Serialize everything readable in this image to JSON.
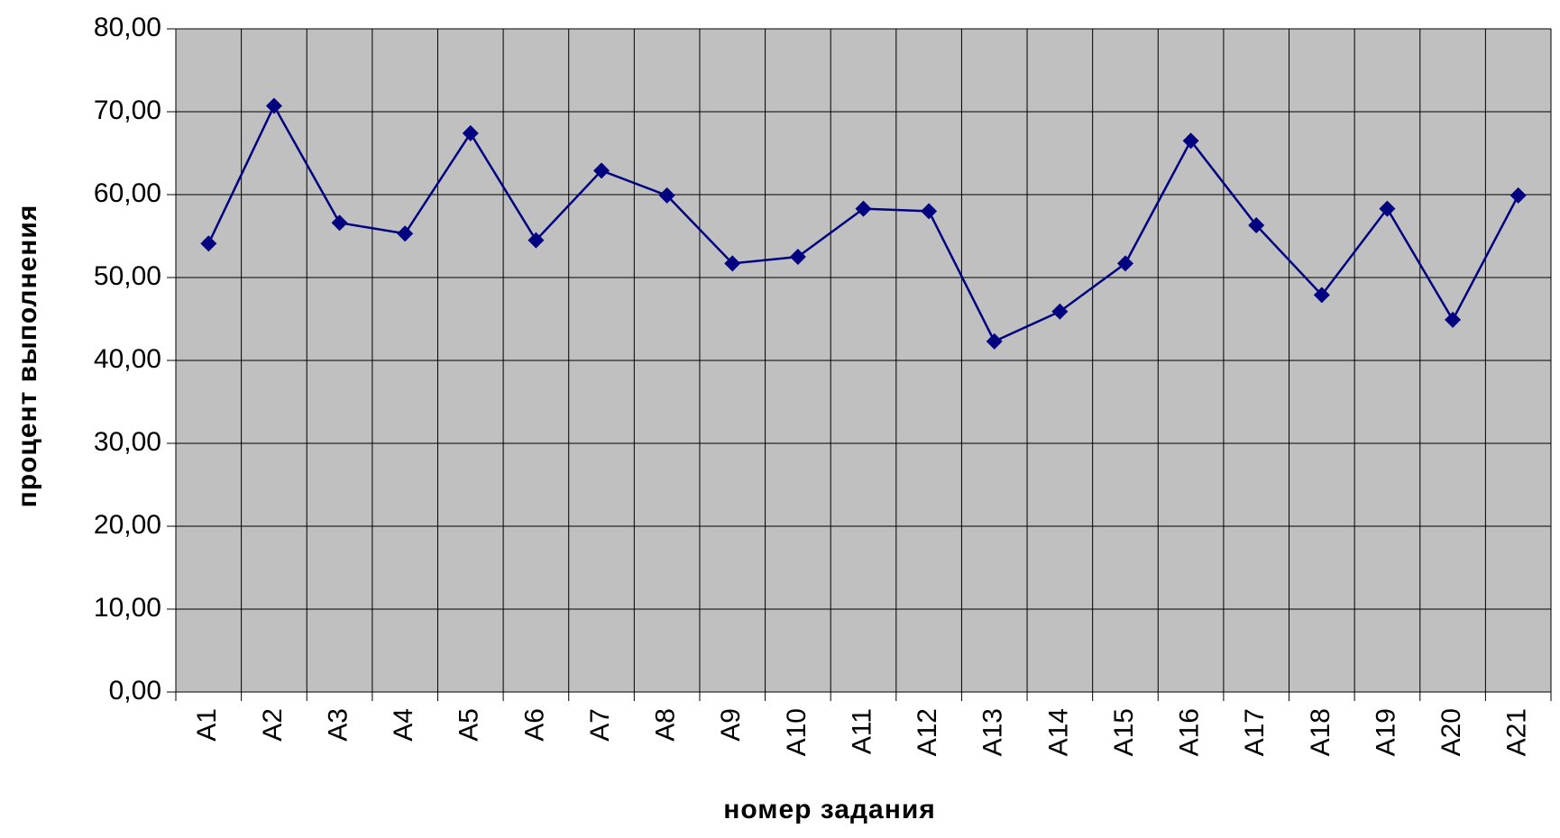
{
  "chart_data": {
    "type": "line",
    "x_label": "номер задания",
    "y_label": "процент выполнения",
    "categories": [
      "A1",
      "A2",
      "A3",
      "A4",
      "A5",
      "A6",
      "A7",
      "A8",
      "A9",
      "A10",
      "A11",
      "A12",
      "A13",
      "A14",
      "A15",
      "A16",
      "A17",
      "A18",
      "A19",
      "A20",
      "A21"
    ],
    "series": [
      {
        "name": "процент выполнения",
        "color": "#000080",
        "values": [
          54.1,
          70.7,
          56.6,
          55.3,
          67.4,
          54.5,
          62.9,
          59.9,
          51.7,
          52.5,
          58.3,
          58.0,
          42.3,
          45.9,
          51.7,
          66.5,
          56.3,
          47.9,
          58.3,
          44.9,
          59.9
        ]
      }
    ],
    "ylim": [
      0,
      80
    ],
    "yticks": [
      {
        "value": 0,
        "label": "0,00"
      },
      {
        "value": 10,
        "label": "10,00"
      },
      {
        "value": 20,
        "label": "20,00"
      },
      {
        "value": 30,
        "label": "30,00"
      },
      {
        "value": 40,
        "label": "40,00"
      },
      {
        "value": 50,
        "label": "50,00"
      },
      {
        "value": 60,
        "label": "60,00"
      },
      {
        "value": 70,
        "label": "70,00"
      },
      {
        "value": 80,
        "label": "80,00"
      }
    ],
    "grid": true,
    "plot_background": "#c0c0c0"
  }
}
